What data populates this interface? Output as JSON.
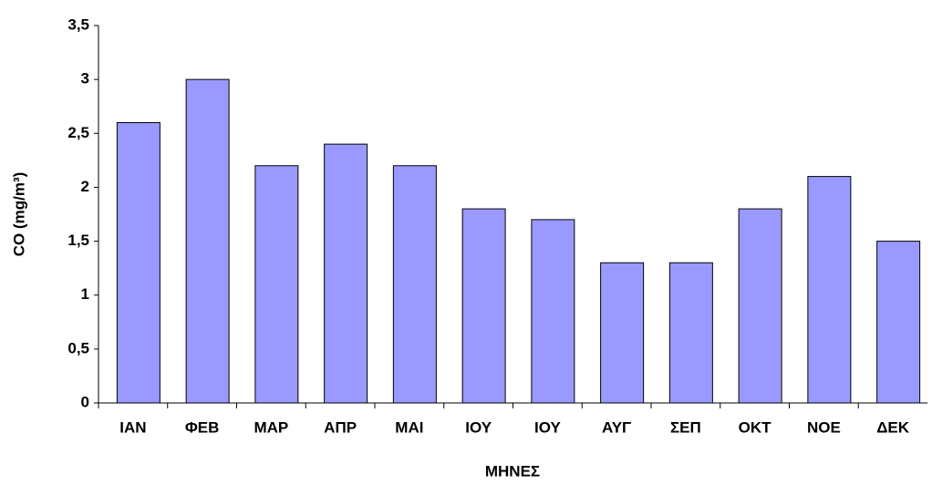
{
  "chart_data": {
    "type": "bar",
    "x_label": "ΜΗΝΕΣ",
    "y_label": "CO (mg/m³)",
    "categories": [
      "ΙΑΝ",
      "ΦΕΒ",
      "ΜΑΡ",
      "ΑΠΡ",
      "ΜΑΙ",
      "ΙΟΥ",
      "ΙΟΥ",
      "ΑΥΓ",
      "ΣΕΠ",
      "ΟΚΤ",
      "ΝΟΕ",
      "ΔΕΚ"
    ],
    "values": [
      2.6,
      3,
      2.2,
      2.4,
      2.2,
      1.8,
      1.7,
      1.3,
      1.3,
      1.8,
      2.1,
      1.5
    ],
    "color": "#9999ff",
    "ylim": [
      0,
      3.5
    ],
    "yticks": [
      0,
      {
        "value": 0.5,
        "label": "0,5"
      },
      1,
      {
        "value": 1.5,
        "label": "1,5"
      },
      2,
      {
        "value": 2.5,
        "label": "2,5"
      },
      3,
      {
        "value": 3.5,
        "label": "3,5"
      }
    ],
    "grid": false
  }
}
